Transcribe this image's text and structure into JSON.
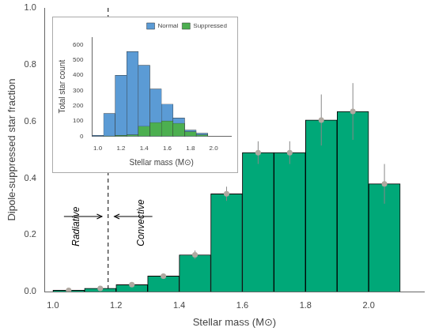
{
  "chart_data": [
    {
      "type": "bar",
      "xlabel": "Stellar mass (M⊙)",
      "ylabel": "Dipole-suppressed star fraction",
      "x": [
        1.05,
        1.15,
        1.25,
        1.35,
        1.45,
        1.55,
        1.65,
        1.75,
        1.85,
        1.95,
        2.05
      ],
      "series": [
        {
          "type": "bar",
          "color": "#00a878",
          "values": [
            0.005,
            0.012,
            0.025,
            0.055,
            0.13,
            0.345,
            0.49,
            0.49,
            0.605,
            0.635,
            0.38
          ],
          "yerr": [
            0.0,
            0.0,
            0.0,
            0.0,
            0.015,
            0.025,
            0.04,
            0.04,
            0.09,
            0.1,
            0.07
          ]
        },
        {
          "type": "scatter",
          "marker": "circle",
          "color": "#b0a8a0",
          "values": [
            0.005,
            0.012,
            0.025,
            0.055,
            0.13,
            0.345,
            0.49,
            0.49,
            0.605,
            0.635,
            0.38
          ]
        }
      ],
      "xlim": [
        0.975,
        2.175
      ],
      "ylim": [
        0.0,
        1.0
      ],
      "xticks": [
        {
          "value": 1.0,
          "label": "1.0"
        },
        1.2,
        1.4,
        1.6,
        1.8,
        {
          "value": 2.0,
          "label": "2.0"
        }
      ],
      "yticks": [
        {
          "value": 0.0,
          "label": "0.0"
        },
        0.2,
        0.4,
        0.6,
        0.8,
        {
          "value": 1.0,
          "label": "1.0"
        }
      ],
      "grid": false,
      "vlines": [
        {
          "x": 1.175,
          "line_style": "dashed"
        }
      ],
      "arrows": [
        {
          "from": [
            1.035,
            0.265
          ],
          "to": [
            1.155,
            0.265
          ]
        },
        {
          "from": [
            1.315,
            0.265
          ],
          "to": [
            1.195,
            0.265
          ]
        }
      ],
      "annotations": [
        {
          "text": "Radiative",
          "x": 1.075,
          "y": 0.16
        },
        {
          "text": "Convective",
          "x": 1.28,
          "y": 0.16
        }
      ]
    },
    {
      "type": "histogram",
      "xlabel": "Stellar mass (M⊙)",
      "ylabel": "Total star count",
      "bins": [
        0.95,
        1.05,
        1.15,
        1.25,
        1.35,
        1.45,
        1.55,
        1.65,
        1.75,
        1.85,
        1.95
      ],
      "series": [
        {
          "name": "Normal",
          "color": "#5b9bd5",
          "values": [
            5,
            150,
            400,
            555,
            465,
            310,
            210,
            120,
            40,
            20
          ]
        },
        {
          "name": "Suppressed",
          "color": "#4caf50",
          "values": [
            0,
            2,
            5,
            10,
            65,
            90,
            100,
            85,
            30,
            10
          ]
        }
      ],
      "xlim": [
        0.95,
        2.15
      ],
      "ylim": [
        0,
        650
      ],
      "xticks": [
        {
          "value": 1.0,
          "label": "1.0"
        },
        1.2,
        1.4,
        1.6,
        1.8,
        {
          "value": 2.0,
          "label": "2.0"
        }
      ],
      "yticks": [
        0,
        100,
        200,
        300,
        400,
        500,
        600
      ],
      "grid": false,
      "legend": "upper right",
      "stacked": false
    }
  ]
}
